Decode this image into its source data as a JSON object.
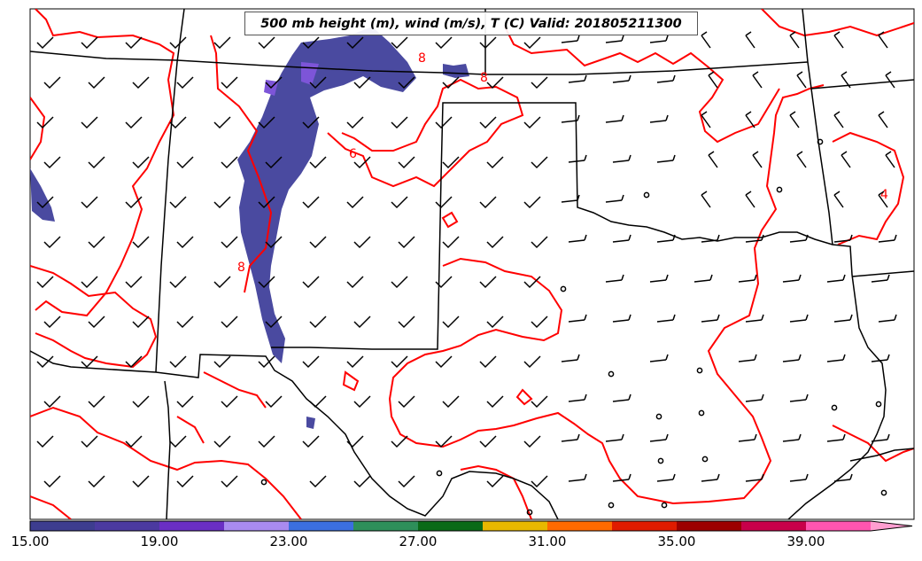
{
  "title": "500 mb height (m), wind (m/s), T (C) Valid: 201805211300",
  "map": {
    "contour_color": "#ff0000",
    "boundary_color": "#000000",
    "contour_labels": [
      "8",
      "8",
      "6",
      "8",
      "4"
    ],
    "wind_field_note_icon": "wind-barb-icon",
    "calm_icon": "calm-circle-icon"
  },
  "colorbar": {
    "min": 15.0,
    "max": 41.0,
    "extend": "max",
    "colors": [
      "#3d3d8f",
      "#4b3aa0",
      "#6a2fc4",
      "#a98bf0",
      "#3b6fe0",
      "#2e8f5a",
      "#0a6a17",
      "#e8b800",
      "#ff6a00",
      "#e01b00",
      "#9c0000",
      "#c8004a",
      "#ff55b0",
      "#ff9ed0"
    ],
    "tick_labels": [
      "15.00",
      "19.00",
      "23.00",
      "27.00",
      "31.00",
      "35.00",
      "39.00"
    ]
  }
}
